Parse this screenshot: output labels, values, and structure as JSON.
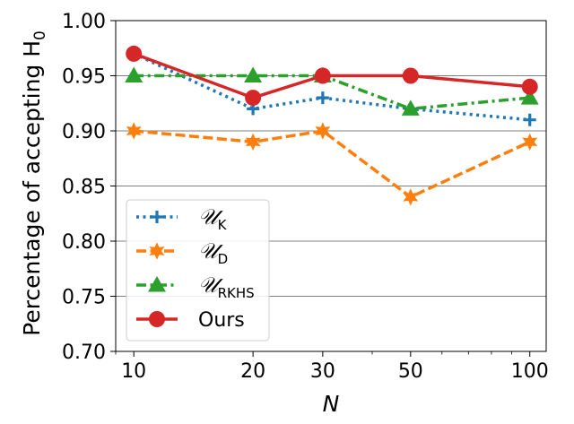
{
  "chart_data": {
    "type": "line",
    "xlabel": "N",
    "ylabel": "Percentage of accepting H",
    "ylabel_sub": "0",
    "x_scale": "log",
    "xlim": [
      9,
      110
    ],
    "ylim": [
      0.7,
      1.0
    ],
    "x": [
      10,
      20,
      30,
      50,
      100
    ],
    "x_tick_labels": [
      "10",
      "20",
      "30",
      "50",
      "100"
    ],
    "y_ticks": [
      0.7,
      0.75,
      0.8,
      0.85,
      0.9,
      0.95,
      1.0
    ],
    "y_tick_labels": [
      "0.70",
      "0.75",
      "0.80",
      "0.85",
      "0.90",
      "0.95",
      "1.00"
    ],
    "grid": "horizontal",
    "legend_position": "lower-left",
    "series": [
      {
        "name": "𝒰",
        "name_sub": "K",
        "values": [
          0.97,
          0.92,
          0.93,
          0.92,
          0.91
        ],
        "color": "#1f77b4",
        "line_style": "dotted",
        "marker": "plus"
      },
      {
        "name": "𝒰",
        "name_sub": "D",
        "values": [
          0.9,
          0.89,
          0.9,
          0.84,
          0.89
        ],
        "color": "#ff7f0e",
        "line_style": "dashed",
        "marker": "star"
      },
      {
        "name": "𝒰",
        "name_sub": "RKHS",
        "values": [
          0.95,
          0.95,
          0.95,
          0.92,
          0.93
        ],
        "color": "#2ca02c",
        "line_style": "dashdot",
        "marker": "triangle"
      },
      {
        "name": "Ours",
        "name_sub": "",
        "values": [
          0.97,
          0.93,
          0.95,
          0.95,
          0.94
        ],
        "color": "#d62728",
        "line_style": "solid",
        "marker": "circle"
      }
    ]
  }
}
